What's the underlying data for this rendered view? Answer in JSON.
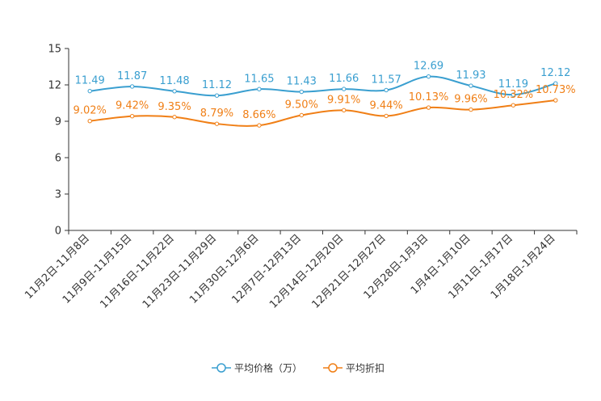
{
  "chart_data": {
    "type": "line",
    "title": "",
    "xlabel": "",
    "ylabel": "",
    "ylim": [
      0,
      15
    ],
    "yticks": [
      0,
      3,
      6,
      9,
      12,
      15
    ],
    "categories": [
      "11月2日-11月8日",
      "11月9日-11月15日",
      "11月16日-11月22日",
      "11月23日-11月29日",
      "11月30日-12月6日",
      "12月7日-12月13日",
      "12月14日-12月20日",
      "12月21日-12月27日",
      "12月28日-1月3日",
      "1月4日-1月10日",
      "1月11日-1月17日",
      "1月18日-1月24日"
    ],
    "series": [
      {
        "name": "平均价格（万）",
        "color": "#3a9fd0",
        "values": [
          11.49,
          11.87,
          11.48,
          11.12,
          11.65,
          11.43,
          11.66,
          11.57,
          12.69,
          11.93,
          11.19,
          12.12
        ],
        "labels": [
          "11.49",
          "11.87",
          "11.48",
          "11.12",
          "11.65",
          "11.43",
          "11.66",
          "11.57",
          "12.69",
          "11.93",
          "11.19",
          "12.12"
        ]
      },
      {
        "name": "平均折扣",
        "color": "#f07f16",
        "values": [
          9.02,
          9.42,
          9.35,
          8.79,
          8.66,
          9.5,
          9.91,
          9.44,
          10.13,
          9.96,
          10.32,
          10.73
        ],
        "labels": [
          "9.02%",
          "9.42%",
          "9.35%",
          "8.79%",
          "8.66%",
          "9.50%",
          "9.91%",
          "9.44%",
          "10.13%",
          "9.96%",
          "10.32%",
          "10.73%"
        ]
      }
    ],
    "legend": "bottom-center",
    "grid": false
  }
}
